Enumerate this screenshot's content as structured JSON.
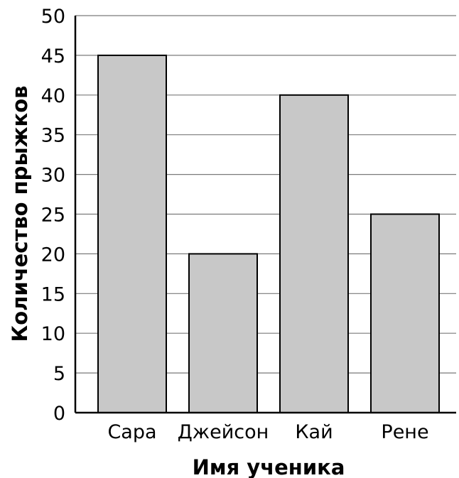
{
  "chart_data": {
    "type": "bar",
    "categories": [
      "Сара",
      "Джейсон",
      "Кай",
      "Рене"
    ],
    "values": [
      45,
      20,
      40,
      25
    ],
    "title": "",
    "xlabel": "Имя ученика",
    "ylabel": "Количество прыжков",
    "ylim": [
      0,
      50
    ],
    "yticks": [
      0,
      5,
      10,
      15,
      20,
      25,
      30,
      35,
      40,
      45,
      50
    ],
    "grid": true,
    "legend": "none",
    "bar_color": "#c8c8c8",
    "grid_color": "#7a7a7a",
    "axis_color": "#000000"
  }
}
